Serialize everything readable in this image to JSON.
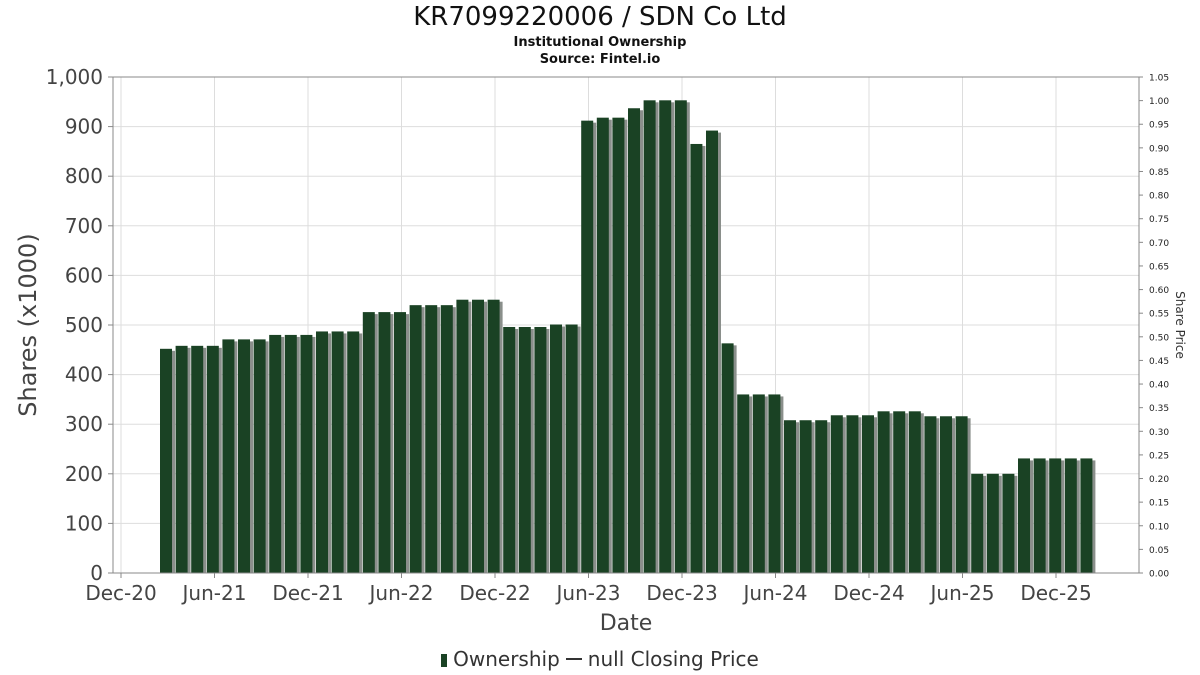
{
  "chart_data": {
    "type": "bar",
    "title": "KR7099220006 / SDN Co Ltd",
    "subtitle": "Institutional Ownership",
    "source": "Source: Fintel.io",
    "xlabel": "Date",
    "ylabel": "Shares (x1000)",
    "y2label": "Share Price",
    "ylim": [
      0,
      1000
    ],
    "y2lim": [
      0,
      1.05
    ],
    "yticks": [
      "0",
      "100",
      "200",
      "300",
      "400",
      "500",
      "600",
      "700",
      "800",
      "900",
      "1,000"
    ],
    "y2ticks": [
      "0.00",
      "0.05",
      "0.10",
      "0.15",
      "0.20",
      "0.25",
      "0.30",
      "0.35",
      "0.40",
      "0.45",
      "0.50",
      "0.55",
      "0.60",
      "0.65",
      "0.70",
      "0.75",
      "0.80",
      "0.85",
      "0.90",
      "0.95",
      "1.00",
      "1.05"
    ],
    "xticks": [
      "Dec-20",
      "Jun-21",
      "Dec-21",
      "Jun-22",
      "Dec-22",
      "Jun-23",
      "Dec-23",
      "Jun-24",
      "Dec-24",
      "Jun-25",
      "Dec-25"
    ],
    "grid": true,
    "legend_position": "bottom",
    "series": [
      {
        "name": "Ownership",
        "color": "#1a4224",
        "values": [
          452,
          458,
          458,
          458,
          471,
          471,
          471,
          480,
          480,
          480,
          487,
          487,
          487,
          526,
          526,
          526,
          540,
          540,
          540,
          551,
          551,
          551,
          496,
          496,
          496,
          501,
          501,
          912,
          918,
          918,
          937,
          953,
          953,
          953,
          865,
          892,
          463,
          360,
          360,
          360,
          308,
          308,
          308,
          318,
          318,
          318,
          326,
          326,
          326,
          316,
          316,
          316,
          200,
          200,
          200,
          231,
          231,
          231,
          231,
          231
        ]
      },
      {
        "name": "null Closing Price",
        "color": "#333333",
        "values": []
      }
    ]
  },
  "legend": {
    "ownership_label": "Ownership",
    "price_label": "null Closing Price"
  }
}
